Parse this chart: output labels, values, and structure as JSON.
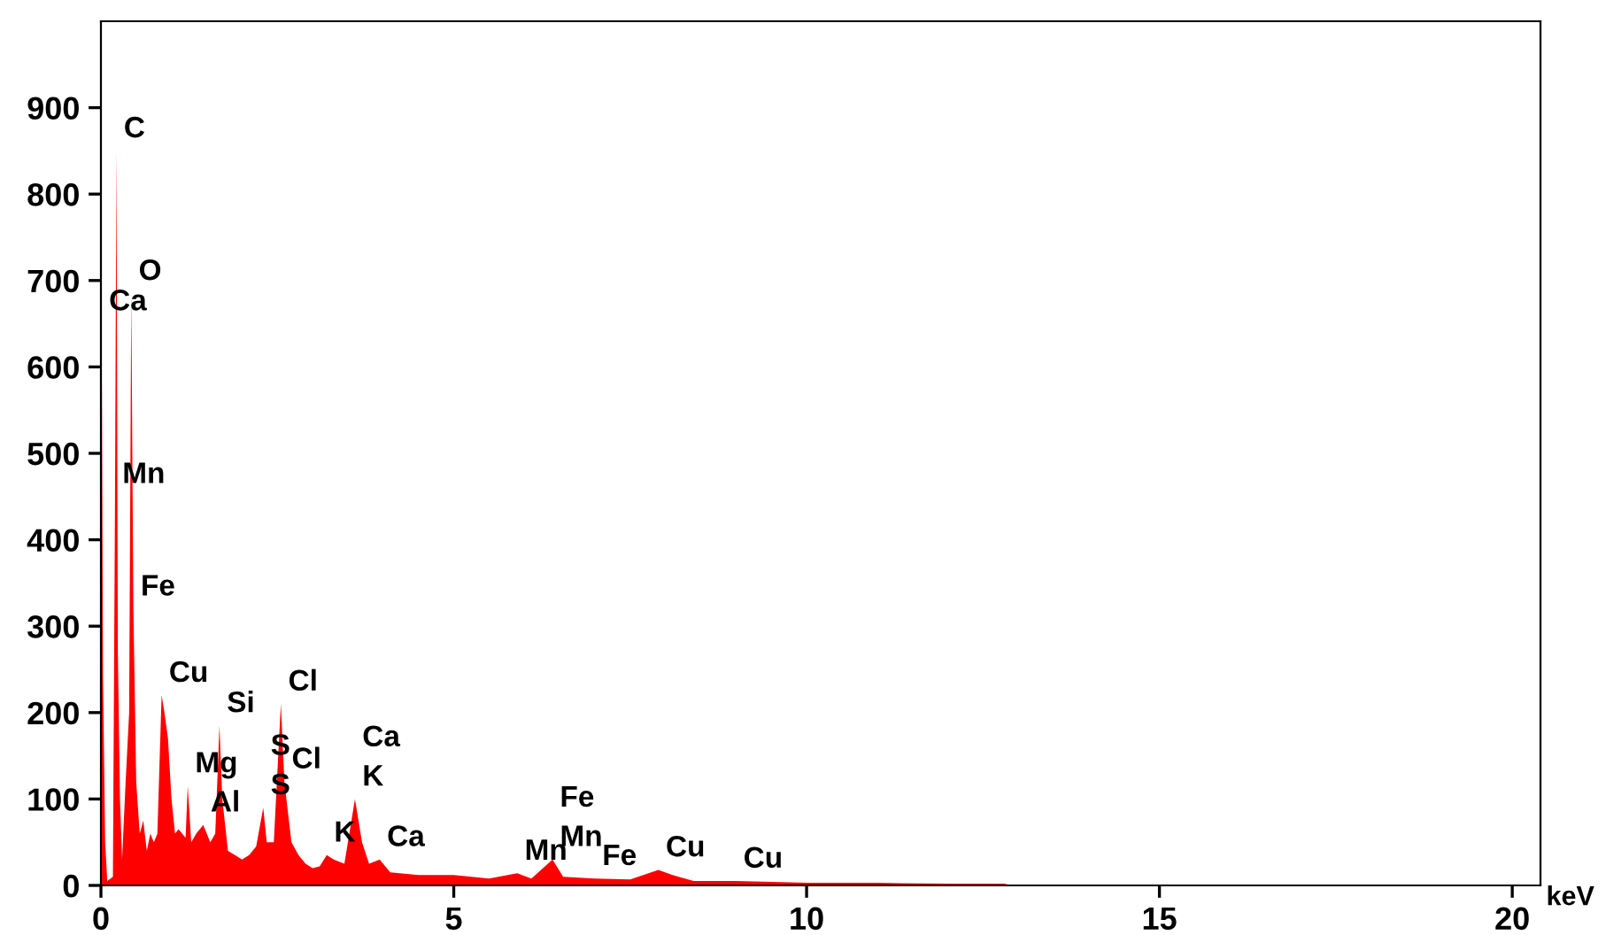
{
  "chart_data": {
    "type": "area",
    "xlabel": "keV",
    "xlim": [
      0,
      20.4
    ],
    "ylim": [
      0,
      1000
    ],
    "xticks": [
      0,
      5,
      10,
      15,
      20
    ],
    "yticks": [
      0,
      100,
      200,
      300,
      400,
      500,
      600,
      700,
      800,
      900
    ],
    "grid": false,
    "legend": false,
    "series": [
      {
        "color": "#ff0000",
        "x": [
          0.0,
          0.01,
          0.03,
          0.06,
          0.09,
          0.17,
          0.2,
          0.22,
          0.24,
          0.27,
          0.3,
          0.35,
          0.4,
          0.43,
          0.46,
          0.5,
          0.55,
          0.6,
          0.65,
          0.7,
          0.75,
          0.8,
          0.86,
          0.9,
          0.95,
          1.0,
          1.05,
          1.1,
          1.2,
          1.23,
          1.28,
          1.35,
          1.45,
          1.55,
          1.62,
          1.68,
          1.72,
          1.8,
          1.9,
          2.0,
          2.1,
          2.2,
          2.3,
          2.35,
          2.45,
          2.55,
          2.6,
          2.7,
          2.8,
          2.9,
          3.0,
          3.1,
          3.2,
          3.3,
          3.45,
          3.6,
          3.7,
          3.8,
          3.95,
          4.1,
          4.5,
          5.0,
          5.5,
          5.9,
          6.1,
          6.4,
          6.55,
          7.0,
          7.5,
          7.9,
          8.1,
          8.4,
          9.0,
          10.0,
          11.0,
          12.0,
          12.8,
          12.9,
          20.0
        ],
        "values": [
          0,
          650,
          240,
          50,
          5,
          10,
          450,
          850,
          270,
          100,
          30,
          120,
          200,
          685,
          320,
          120,
          60,
          75,
          40,
          60,
          50,
          60,
          220,
          200,
          170,
          100,
          60,
          65,
          55,
          115,
          50,
          60,
          70,
          50,
          60,
          185,
          100,
          40,
          35,
          30,
          35,
          45,
          90,
          50,
          50,
          210,
          120,
          50,
          35,
          25,
          20,
          22,
          35,
          30,
          25,
          100,
          50,
          25,
          30,
          15,
          12,
          12,
          8,
          14,
          8,
          30,
          10,
          8,
          7,
          18,
          12,
          5,
          5,
          3,
          3,
          2,
          2,
          0,
          0
        ]
      }
    ],
    "annotations": [
      {
        "text": "C",
        "x": 0.22,
        "y": 850
      },
      {
        "text": "O",
        "x": 0.43,
        "y": 685
      },
      {
        "text": "Ca",
        "x": 0.01,
        "y": 650
      },
      {
        "text": "Mn",
        "x": 0.2,
        "y": 450
      },
      {
        "text": "Fe",
        "x": 0.46,
        "y": 320
      },
      {
        "text": "Cu",
        "x": 0.86,
        "y": 220
      },
      {
        "text": "Si",
        "x": 1.68,
        "y": 185
      },
      {
        "text": "Cl",
        "x": 2.55,
        "y": 210
      },
      {
        "text": "Mg",
        "x": 1.23,
        "y": 115
      },
      {
        "text": "Al",
        "x": 1.45,
        "y": 70
      },
      {
        "text": "S",
        "x": 2.3,
        "y": 90
      },
      {
        "text": "S",
        "x": 2.3,
        "y": 90
      },
      {
        "text": "Cl",
        "x": 2.6,
        "y": 120
      },
      {
        "text": "K",
        "x": 3.6,
        "y": 100
      },
      {
        "text": "Ca",
        "x": 3.6,
        "y": 100
      },
      {
        "text": "K",
        "x": 3.2,
        "y": 35
      },
      {
        "text": "Ca",
        "x": 3.95,
        "y": 30
      },
      {
        "text": "Mn",
        "x": 5.9,
        "y": 14
      },
      {
        "text": "Mn",
        "x": 6.4,
        "y": 30
      },
      {
        "text": "Fe",
        "x": 6.4,
        "y": 30
      },
      {
        "text": "Fe",
        "x": 7.0,
        "y": 8
      },
      {
        "text": "Cu",
        "x": 7.9,
        "y": 18
      },
      {
        "text": "Cu",
        "x": 9.0,
        "y": 5
      }
    ]
  }
}
